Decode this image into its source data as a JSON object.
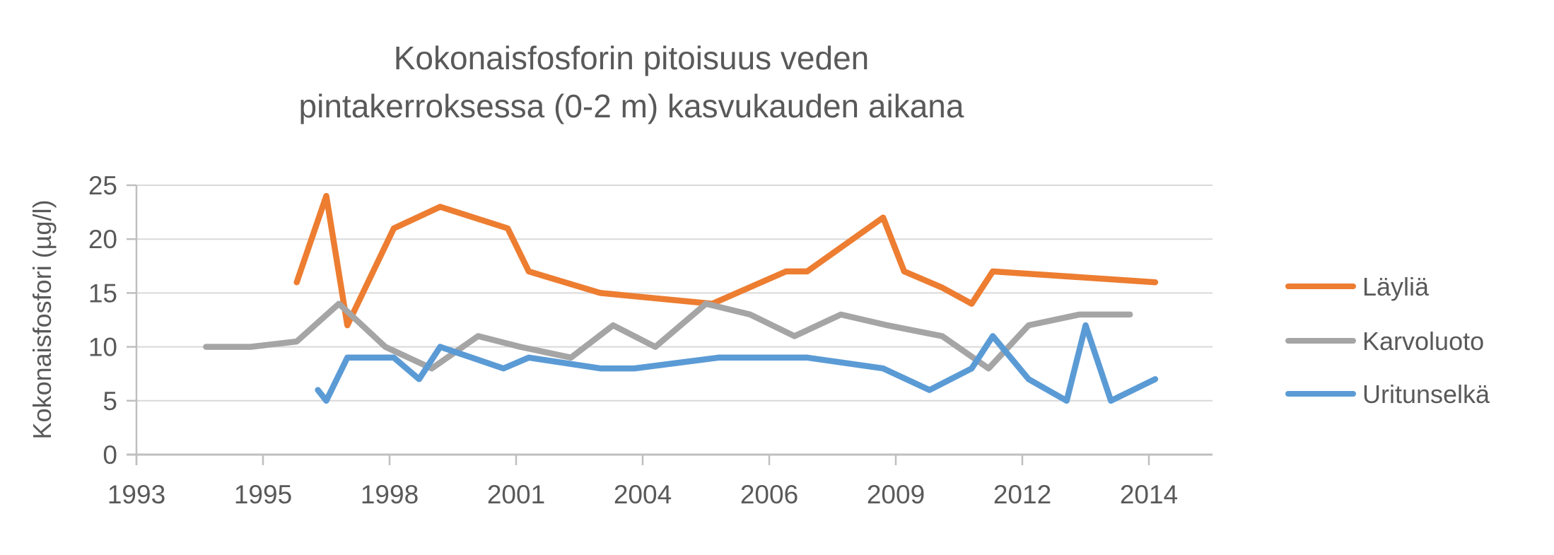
{
  "title": {
    "lines": [
      "Kokonaisfosforin pitoisuus veden",
      "pintakerroksessa (0-2 m) kasvukauden aikana"
    ]
  },
  "y_axis": {
    "title": "Kokonaisfosfori (µg/l)",
    "tick_values": [
      0,
      5,
      10,
      15,
      20,
      25
    ],
    "range": [
      0,
      25
    ]
  },
  "x_axis": {
    "tick_labels": [
      "1993",
      "1995",
      "1998",
      "2001",
      "2004",
      "2006",
      "2009",
      "2012",
      "2014"
    ]
  },
  "legend": {
    "position": "right"
  },
  "colors": {
    "text": "#595959",
    "gridline": "#D9D9D9",
    "axis": "#BFBFBF",
    "background": "#FFFFFF",
    "laylia": "#ED7D31",
    "karvoluoto": "#A5A5A5",
    "uritunselka": "#5B9BD5"
  },
  "chart_data": {
    "type": "line",
    "title": "Kokonaisfosforin pitoisuus veden pintakerroksessa (0-2 m) kasvukauden aikana",
    "xlabel": "",
    "ylabel": "Kokonaisfosfori (µg/l)",
    "ylim": [
      0,
      25
    ],
    "grid": "horizontal",
    "legend_position": "right",
    "x_tick_labels": [
      1993,
      1995,
      1998,
      2001,
      2004,
      2006,
      2009,
      2012,
      2014
    ],
    "series": [
      {
        "name": "Läyliä",
        "color": "#ED7D31",
        "points": [
          [
            1995.8,
            16
          ],
          [
            1996.5,
            24
          ],
          [
            1997.0,
            12
          ],
          [
            1998.1,
            21
          ],
          [
            1999.2,
            23
          ],
          [
            2000.8,
            21
          ],
          [
            2001.3,
            17
          ],
          [
            2003.0,
            15
          ],
          [
            2005.1,
            14
          ],
          [
            2006.4,
            17
          ],
          [
            2006.9,
            17
          ],
          [
            2008.7,
            22
          ],
          [
            2009.2,
            17
          ],
          [
            2010.1,
            15.5
          ],
          [
            2010.8,
            14
          ],
          [
            2011.3,
            17
          ],
          [
            2014.1,
            16
          ]
        ]
      },
      {
        "name": "Karvoluoto",
        "color": "#A5A5A5",
        "points": [
          [
            1994.1,
            10
          ],
          [
            1994.8,
            10
          ],
          [
            1995.8,
            10.5
          ],
          [
            1996.8,
            14
          ],
          [
            1997.9,
            10
          ],
          [
            1999.0,
            8
          ],
          [
            2000.1,
            11
          ],
          [
            2001.1,
            10
          ],
          [
            2002.3,
            9
          ],
          [
            2003.3,
            12
          ],
          [
            2004.2,
            10
          ],
          [
            2005.0,
            14
          ],
          [
            2005.7,
            13
          ],
          [
            2006.6,
            11
          ],
          [
            2007.7,
            13
          ],
          [
            2008.8,
            12
          ],
          [
            2010.1,
            11
          ],
          [
            2011.2,
            8
          ],
          [
            2012.1,
            12
          ],
          [
            2012.9,
            13
          ],
          [
            2013.7,
            13
          ]
        ]
      },
      {
        "name": "Uritunselkä",
        "color": "#5B9BD5",
        "points": [
          [
            1996.3,
            6
          ],
          [
            1996.5,
            5
          ],
          [
            1997.0,
            9
          ],
          [
            1998.1,
            9
          ],
          [
            1998.7,
            7
          ],
          [
            1999.2,
            10
          ],
          [
            2000.7,
            8
          ],
          [
            2001.3,
            9
          ],
          [
            2003.0,
            8
          ],
          [
            2003.8,
            8
          ],
          [
            2005.2,
            9
          ],
          [
            2006.9,
            9
          ],
          [
            2008.7,
            8
          ],
          [
            2009.8,
            6
          ],
          [
            2010.8,
            8
          ],
          [
            2011.3,
            11
          ],
          [
            2012.1,
            7
          ],
          [
            2012.7,
            5
          ],
          [
            2013.0,
            12
          ],
          [
            2013.4,
            5
          ],
          [
            2014.1,
            7
          ]
        ]
      }
    ]
  }
}
